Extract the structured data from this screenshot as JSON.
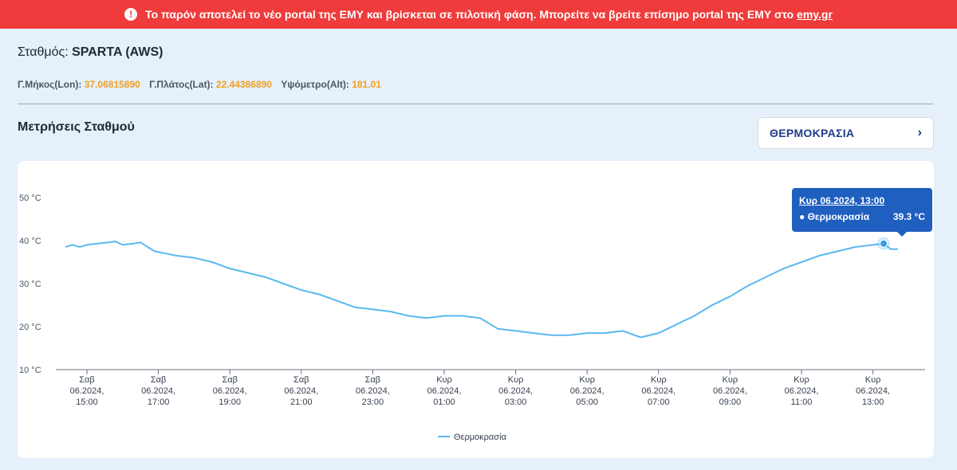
{
  "banner": {
    "icon": "alert-icon",
    "text": "Το παρόν αποτελεί το νέο portal της ΕΜΥ και βρίσκεται σε πιλοτική φάση. Μπορείτε να βρείτε επίσημο portal της ΕΜΥ στο",
    "link": "emy.gr"
  },
  "station": {
    "label": "Σταθμός:",
    "name": "SPARTA (AWS)"
  },
  "coords": {
    "lon_label": "Γ.Μήκος(Lon):",
    "lon": "37.06815890",
    "lat_label": "Γ.Πλάτος(Lat):",
    "lat": "22.44386890",
    "alt_label": "Υψόμετρο(Alt):",
    "alt": "181.01"
  },
  "section": {
    "title": "Μετρήσεις Σταθμού"
  },
  "measurement_select": {
    "value": "ΘΕΡΜΟΚΡΑΣΙΑ",
    "icon": "chevron-right-icon"
  },
  "tooltip": {
    "title": "Κυρ 06.2024, 13:00",
    "series": "● Θερμοκρασία",
    "value": "39.3 °C"
  },
  "chart_data": {
    "type": "line",
    "ylim": [
      10,
      50
    ],
    "yticks": [
      "10 °C",
      "20 °C",
      "30 °C",
      "40 °C",
      "50 °C"
    ],
    "ytick_values": [
      10,
      20,
      30,
      40,
      50
    ],
    "xticks": [
      {
        "day": "Σαβ",
        "date": "06.2024,",
        "time": "15:00",
        "hour": 15
      },
      {
        "day": "Σαβ",
        "date": "06.2024,",
        "time": "17:00",
        "hour": 17
      },
      {
        "day": "Σαβ",
        "date": "06.2024,",
        "time": "19:00",
        "hour": 19
      },
      {
        "day": "Σαβ",
        "date": "06.2024,",
        "time": "21:00",
        "hour": 21
      },
      {
        "day": "Σαβ",
        "date": "06.2024,",
        "time": "23:00",
        "hour": 23
      },
      {
        "day": "Κυρ",
        "date": "06.2024,",
        "time": "01:00",
        "hour": 25
      },
      {
        "day": "Κυρ",
        "date": "06.2024,",
        "time": "03:00",
        "hour": 27
      },
      {
        "day": "Κυρ",
        "date": "06.2024,",
        "time": "05:00",
        "hour": 29
      },
      {
        "day": "Κυρ",
        "date": "06.2024,",
        "time": "07:00",
        "hour": 31
      },
      {
        "day": "Κυρ",
        "date": "06.2024,",
        "time": "09:00",
        "hour": 33
      },
      {
        "day": "Κυρ",
        "date": "06.2024,",
        "time": "11:00",
        "hour": 35
      },
      {
        "day": "Κυρ",
        "date": "06.2024,",
        "time": "13:00",
        "hour": 37
      }
    ],
    "series": [
      {
        "name": "Θερμοκρασία",
        "color": "#5ab8f0",
        "x": [
          14.4,
          14.6,
          14.8,
          15.0,
          15.2,
          15.5,
          15.8,
          16.0,
          16.3,
          16.5,
          16.7,
          16.9,
          17.2,
          17.5,
          18.0,
          18.5,
          19.0,
          19.5,
          20.0,
          20.5,
          21.0,
          21.5,
          22.0,
          22.5,
          23.0,
          23.5,
          24.0,
          24.5,
          25.0,
          25.5,
          26.0,
          26.5,
          27.0,
          27.5,
          28.0,
          28.5,
          29.0,
          29.5,
          30.0,
          30.5,
          31.0,
          31.5,
          32.0,
          32.5,
          33.0,
          33.5,
          34.0,
          34.5,
          35.0,
          35.5,
          36.0,
          36.5,
          37.0,
          37.3,
          37.5,
          37.7
        ],
        "y": [
          38.5,
          39.0,
          38.5,
          39.0,
          39.2,
          39.5,
          39.8,
          39.0,
          39.3,
          39.6,
          38.5,
          37.5,
          37.0,
          36.5,
          36.0,
          35.0,
          33.5,
          32.5,
          31.5,
          30.0,
          28.5,
          27.5,
          26.0,
          24.5,
          24.0,
          23.5,
          22.5,
          22.0,
          22.5,
          22.5,
          22.0,
          19.5,
          19.0,
          18.5,
          18.0,
          18.0,
          18.5,
          18.5,
          19.0,
          17.5,
          18.5,
          20.5,
          22.5,
          25.0,
          27.0,
          29.5,
          31.5,
          33.5,
          35.0,
          36.5,
          37.5,
          38.5,
          39.0,
          39.3,
          38.0,
          38.0
        ]
      }
    ],
    "highlight": {
      "x": 37.3,
      "y": 39.3
    },
    "legend": "bottom-center",
    "grid": false
  }
}
